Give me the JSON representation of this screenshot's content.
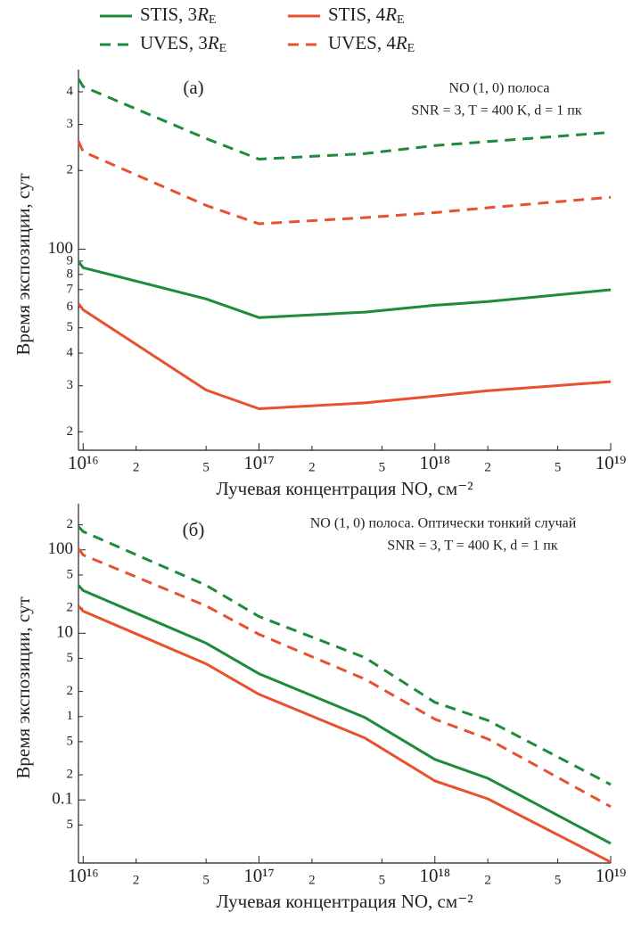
{
  "chart_data": [
    {
      "type": "line",
      "log_x": true,
      "log_y": true,
      "x_label": "Лучевая концентрация NO, см⁻²",
      "y_label": "Время экспозиции, сут",
      "annotations": [
        "(а)",
        "NO (1, 0) полоса",
        "SNR = 3, T = 400 K, d = 1 пк"
      ],
      "x": [
        9400000000000000.0,
        1e+16,
        5e+16,
        1e+17,
        4e+17,
        1e+18,
        2e+18,
        1e+19
      ],
      "series": [
        {
          "name": "STIS, 3RE",
          "color": "#1e8a3c",
          "style": "solid",
          "values": [
            89.8,
            84.9,
            64.5,
            54.7,
            57.4,
            61,
            63,
            69.9
          ]
        },
        {
          "name": "STIS, 4RE",
          "color": "#e8512e",
          "style": "solid",
          "values": [
            61.9,
            58.6,
            28.9,
            24.5,
            25.8,
            27.4,
            28.7,
            31.1
          ]
        },
        {
          "name": "UVES, 3RE",
          "color": "#1e8a3c",
          "style": "dashed",
          "values": [
            448,
            419,
            265,
            221,
            232,
            249,
            258,
            280
          ]
        },
        {
          "name": "UVES, 4RE",
          "color": "#e8512e",
          "style": "dashed",
          "values": [
            259,
            236,
            147,
            125,
            132,
            138,
            144,
            158
          ]
        }
      ],
      "xlim": [
        9400000000000000.0,
        1e+19
      ],
      "xticks": [
        {
          "value": 1e+16,
          "label": "10¹⁶"
        },
        {
          "value": 2e+16,
          "label": "2"
        },
        {
          "value": 5e+16,
          "label": "5"
        },
        {
          "value": 1e+17,
          "label": "10¹⁷"
        },
        {
          "value": 2e+17,
          "label": "2"
        },
        {
          "value": 5e+17,
          "label": "5"
        },
        {
          "value": 1e+18,
          "label": "10¹⁸"
        },
        {
          "value": 2e+18,
          "label": "2"
        },
        {
          "value": 5e+18,
          "label": "5"
        },
        {
          "value": 1e+19,
          "label": "10¹⁹"
        }
      ],
      "ylim": [
        17,
        450
      ],
      "yticks": [
        {
          "value": 20,
          "label": "2"
        },
        {
          "value": 30,
          "label": "3"
        },
        {
          "value": 40,
          "label": "4"
        },
        {
          "value": 50,
          "label": "5"
        },
        {
          "value": 60,
          "label": "6"
        },
        {
          "value": 70,
          "label": "7"
        },
        {
          "value": 80,
          "label": "8"
        },
        {
          "value": 90,
          "label": "9"
        },
        100,
        {
          "value": 200,
          "label": "2"
        },
        {
          "value": 300,
          "label": "3"
        },
        {
          "value": 400,
          "label": "4"
        }
      ]
    },
    {
      "type": "line",
      "log_x": true,
      "log_y": true,
      "x_label": "Лучевая концентрация NO, см⁻²",
      "y_label": "Время экспозиции, сут",
      "annotations": [
        "(б)",
        "NO (1, 0) полоса. Оптически тонкий случай",
        "SNR = 3, T = 400 K, d = 1 пк"
      ],
      "x": [
        9400000000000000.0,
        1e+16,
        5e+16,
        1e+17,
        4e+17,
        1e+18,
        2e+18,
        1e+19
      ],
      "series": [
        {
          "color": "#1e8a3c",
          "style": "solid",
          "values": [
            37.6,
            32.5,
            7.6,
            3.27,
            0.975,
            0.306,
            0.182,
            0.03
          ]
        },
        {
          "color": "#e8512e",
          "style": "solid",
          "values": [
            21.3,
            18.4,
            4.29,
            1.85,
            0.553,
            0.169,
            0.103,
            0.018
          ]
        },
        {
          "color": "#1e8a3c",
          "style": "dashed",
          "values": [
            190,
            166,
            37.6,
            15.9,
            5.1,
            1.48,
            0.9,
            0.153
          ]
        },
        {
          "color": "#e8512e",
          "style": "dashed",
          "values": [
            103.5,
            87,
            21.3,
            9.7,
            2.82,
            0.93,
            0.54,
            0.083
          ]
        }
      ],
      "xlim": [
        9400000000000000.0,
        1e+19
      ],
      "xticks": [
        {
          "value": 1e+16,
          "label": "10¹⁶"
        },
        {
          "value": 2e+16,
          "label": "2"
        },
        {
          "value": 5e+16,
          "label": "5"
        },
        {
          "value": 1e+17,
          "label": "10¹⁷"
        },
        {
          "value": 2e+17,
          "label": "2"
        },
        {
          "value": 5e+17,
          "label": "5"
        },
        {
          "value": 1e+18,
          "label": "10¹⁸"
        },
        {
          "value": 2e+18,
          "label": "2"
        },
        {
          "value": 5e+18,
          "label": "5"
        },
        {
          "value": 1e+19,
          "label": "10¹⁹"
        }
      ],
      "ylim": [
        0.0175,
        280
      ],
      "yticks": [
        {
          "value": 0.05,
          "label": "5"
        },
        0.1,
        {
          "value": 0.2,
          "label": "2"
        },
        {
          "value": 0.5,
          "label": "5"
        },
        1,
        {
          "value": 2,
          "label": "2"
        },
        {
          "value": 5,
          "label": "5"
        },
        10,
        {
          "value": 20,
          "label": "2"
        },
        {
          "value": 50,
          "label": "5"
        },
        100,
        {
          "value": 200,
          "label": "2"
        }
      ]
    }
  ]
}
